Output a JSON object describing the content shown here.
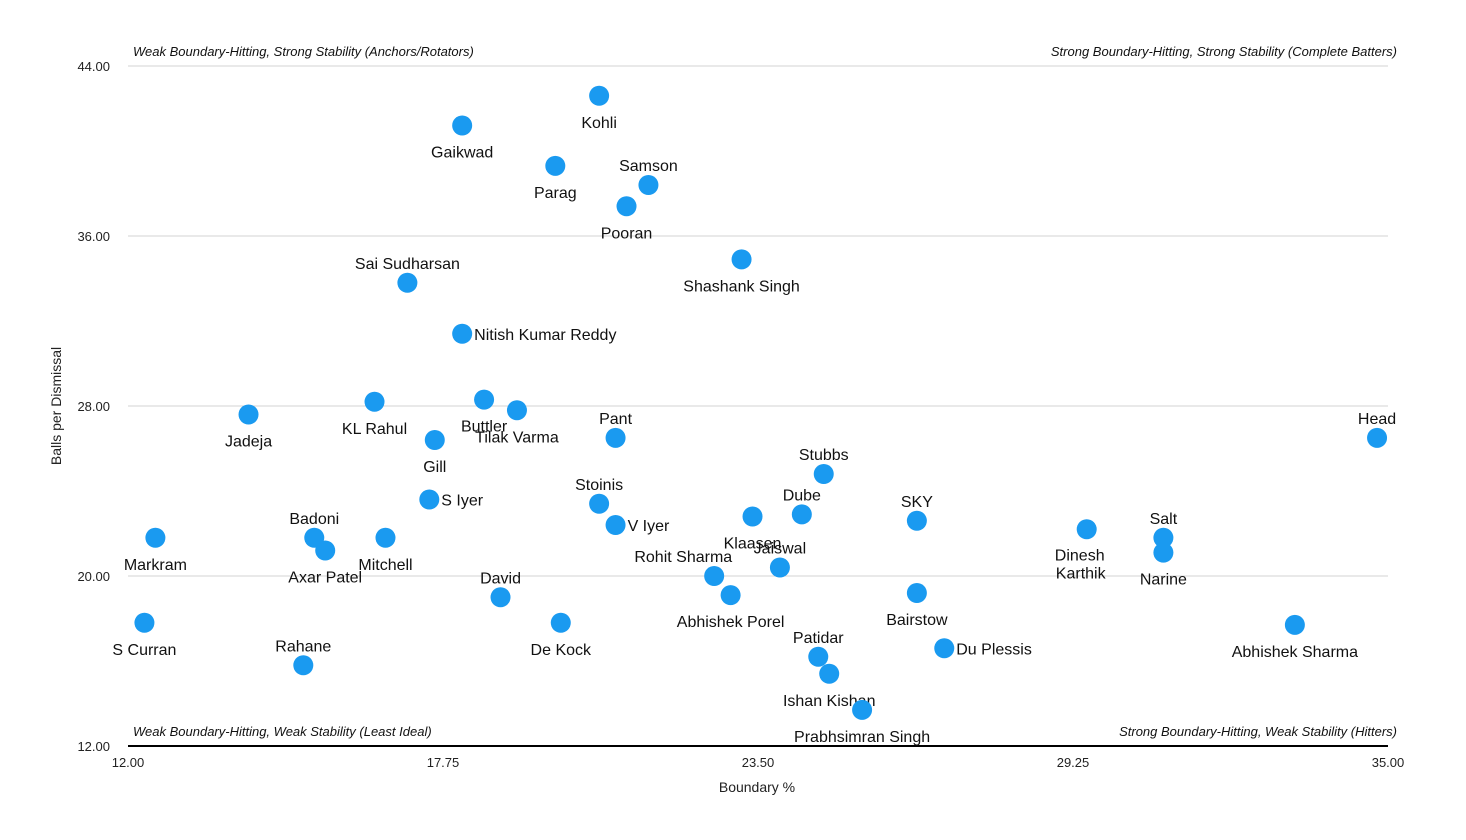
{
  "chart_data": {
    "type": "scatter",
    "xlabel": "Boundary %",
    "ylabel": "Balls per Dismissal",
    "xlim": [
      12.0,
      35.0
    ],
    "ylim": [
      12.0,
      44.0
    ],
    "x_ticks": [
      "12.00",
      "17.75",
      "23.50",
      "29.25",
      "35.00"
    ],
    "y_ticks": [
      "12.00",
      "20.00",
      "28.00",
      "36.00",
      "44.00"
    ],
    "grid": true,
    "quadrant_labels": {
      "top_left": "Weak Boundary-Hitting, Strong Stability (Anchors/Rotators)",
      "top_right": "Strong Boundary-Hitting, Strong Stability (Complete Batters)",
      "bottom_left": "Weak Boundary-Hitting, Weak Stability (Least Ideal)",
      "bottom_right": "Strong Boundary-Hitting, Weak Stability (Hitters)"
    },
    "point_color": "#1a9af0",
    "points": [
      {
        "label": "Kohli",
        "x": 20.6,
        "y": 42.6,
        "pos": "below"
      },
      {
        "label": "Gaikwad",
        "x": 18.1,
        "y": 41.2,
        "pos": "below"
      },
      {
        "label": "Parag",
        "x": 19.8,
        "y": 39.3,
        "pos": "below"
      },
      {
        "label": "Samson",
        "x": 21.5,
        "y": 38.4,
        "pos": "above"
      },
      {
        "label": "Pooran",
        "x": 21.1,
        "y": 37.4,
        "pos": "below"
      },
      {
        "label": "Shashank Singh",
        "x": 23.2,
        "y": 34.9,
        "pos": "below"
      },
      {
        "label": "Sai Sudharsan",
        "x": 17.1,
        "y": 33.8,
        "pos": "above"
      },
      {
        "label": "Nitish Kumar Reddy",
        "x": 18.1,
        "y": 31.4,
        "pos": "right"
      },
      {
        "label": "KL Rahul",
        "x": 16.5,
        "y": 28.2,
        "pos": "below"
      },
      {
        "label": "Buttler",
        "x": 18.5,
        "y": 28.3,
        "pos": "below"
      },
      {
        "label": "Tilak Varma",
        "x": 19.1,
        "y": 27.8,
        "pos": "below"
      },
      {
        "label": "Jadeja",
        "x": 14.2,
        "y": 27.6,
        "pos": "below"
      },
      {
        "label": "Gill",
        "x": 17.6,
        "y": 26.4,
        "pos": "below"
      },
      {
        "label": "Pant",
        "x": 20.9,
        "y": 26.5,
        "pos": "above"
      },
      {
        "label": "Head",
        "x": 34.8,
        "y": 26.5,
        "pos": "above"
      },
      {
        "label": "Stubbs",
        "x": 24.7,
        "y": 24.8,
        "pos": "above"
      },
      {
        "label": "S Iyer",
        "x": 17.5,
        "y": 23.6,
        "pos": "right"
      },
      {
        "label": "Stoinis",
        "x": 20.6,
        "y": 23.4,
        "pos": "above"
      },
      {
        "label": "Dube",
        "x": 24.3,
        "y": 22.9,
        "pos": "above"
      },
      {
        "label": "Klaasen",
        "x": 23.4,
        "y": 22.8,
        "pos": "below"
      },
      {
        "label": "SKY",
        "x": 26.4,
        "y": 22.6,
        "pos": "above"
      },
      {
        "label": "V Iyer",
        "x": 20.9,
        "y": 22.4,
        "pos": "right"
      },
      {
        "label": "Dinesh Karthik",
        "x": 29.5,
        "y": 22.2,
        "pos": "below2"
      },
      {
        "label": "Markram",
        "x": 12.5,
        "y": 21.8,
        "pos": "below"
      },
      {
        "label": "Badoni",
        "x": 15.4,
        "y": 21.8,
        "pos": "above"
      },
      {
        "label": "Mitchell",
        "x": 16.7,
        "y": 21.8,
        "pos": "below"
      },
      {
        "label": "Salt",
        "x": 30.9,
        "y": 21.8,
        "pos": "above"
      },
      {
        "label": "Axar Patel",
        "x": 15.6,
        "y": 21.2,
        "pos": "below"
      },
      {
        "label": "Narine",
        "x": 30.9,
        "y": 21.1,
        "pos": "below"
      },
      {
        "label": "Jaiswal",
        "x": 23.9,
        "y": 20.4,
        "pos": "above"
      },
      {
        "label": "Rohit Sharma",
        "x": 22.7,
        "y": 20.0,
        "pos": "aboveleft"
      },
      {
        "label": "Bairstow",
        "x": 26.4,
        "y": 19.2,
        "pos": "below"
      },
      {
        "label": "Abhishek Porel",
        "x": 23.0,
        "y": 19.1,
        "pos": "below"
      },
      {
        "label": "David",
        "x": 18.8,
        "y": 19.0,
        "pos": "above"
      },
      {
        "label": "S Curran",
        "x": 12.3,
        "y": 17.8,
        "pos": "below"
      },
      {
        "label": "De Kock",
        "x": 19.9,
        "y": 17.8,
        "pos": "below"
      },
      {
        "label": "Abhishek Sharma",
        "x": 33.3,
        "y": 17.7,
        "pos": "below"
      },
      {
        "label": "Du Plessis",
        "x": 26.9,
        "y": 16.6,
        "pos": "right"
      },
      {
        "label": "Patidar",
        "x": 24.6,
        "y": 16.2,
        "pos": "above"
      },
      {
        "label": "Rahane",
        "x": 15.2,
        "y": 15.8,
        "pos": "above"
      },
      {
        "label": "Ishan Kishan",
        "x": 24.8,
        "y": 15.4,
        "pos": "below"
      },
      {
        "label": "Prabhsimran Singh",
        "x": 25.4,
        "y": 13.7,
        "pos": "below"
      }
    ]
  }
}
